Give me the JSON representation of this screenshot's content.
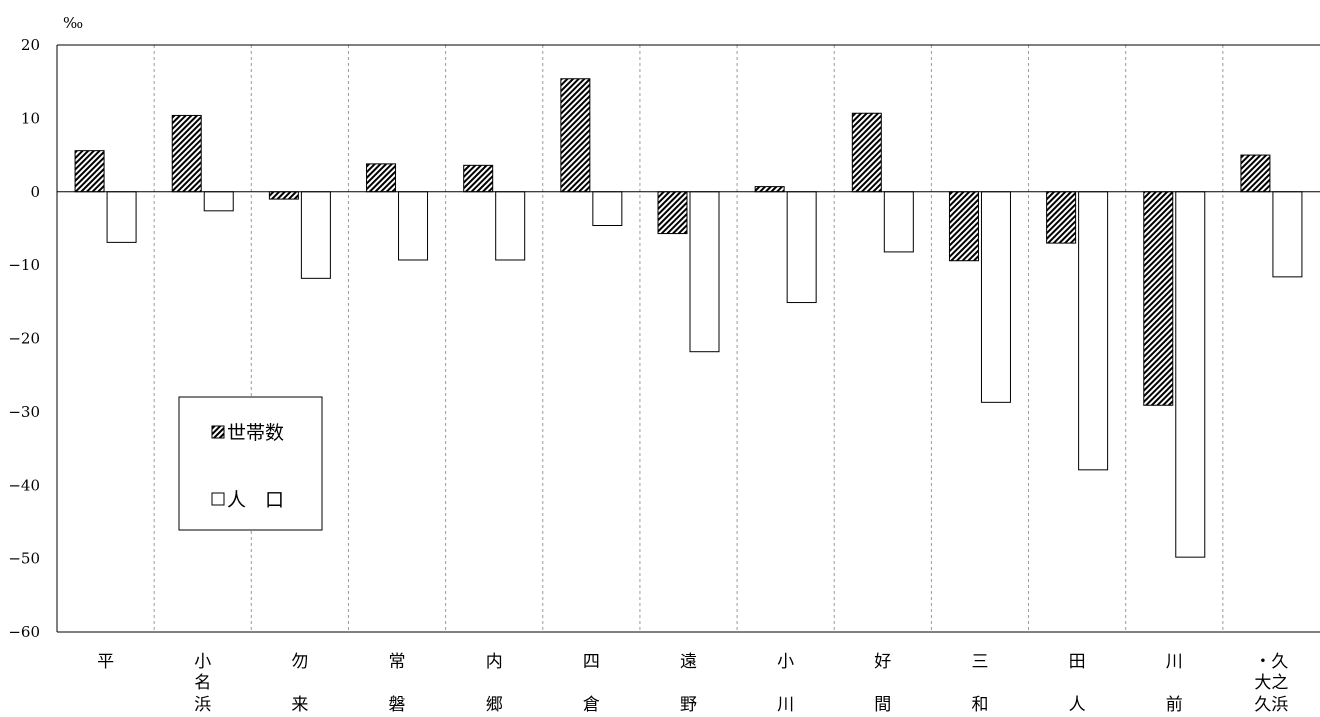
{
  "chart_data": {
    "type": "bar",
    "unit_label": "‰",
    "ylim": [
      -60,
      20
    ],
    "y_ticks": [
      "20",
      "10",
      "0",
      "-10",
      "-20",
      "-30",
      "-40",
      "-50",
      "-60"
    ],
    "categories": [
      [
        "平"
      ],
      [
        "小",
        "名",
        "浜"
      ],
      [
        "勿",
        "",
        "来"
      ],
      [
        "常",
        "",
        "磐"
      ],
      [
        "内",
        "",
        "郷"
      ],
      [
        "四",
        "",
        "倉"
      ],
      [
        "遠",
        "",
        "野"
      ],
      [
        "小",
        "",
        "川"
      ],
      [
        "好",
        "",
        "間"
      ],
      [
        "三",
        "",
        "和"
      ],
      [
        "田",
        "",
        "人"
      ],
      [
        "川",
        "",
        "前"
      ],
      [
        "・久",
        "大之",
        "久浜"
      ]
    ],
    "series": [
      {
        "name": "世帯数",
        "style": "hatched",
        "values": [
          5.6,
          10.4,
          -1.0,
          3.8,
          3.6,
          15.4,
          -5.7,
          0.7,
          10.7,
          -9.4,
          -7.0,
          -29.1,
          5.0
        ]
      },
      {
        "name": "人　口",
        "style": "white",
        "values": [
          -6.9,
          -2.6,
          -11.8,
          -9.3,
          -9.3,
          -4.6,
          -21.8,
          -15.1,
          -8.2,
          -28.7,
          -37.9,
          -49.8,
          -11.6
        ]
      }
    ],
    "legend_position": "lower-left inside plot",
    "grid": "vertical dashed separators",
    "colors": {
      "axis": "#000000",
      "separator": "#9a9a9a",
      "bar_fill_white": "#ffffff"
    }
  }
}
